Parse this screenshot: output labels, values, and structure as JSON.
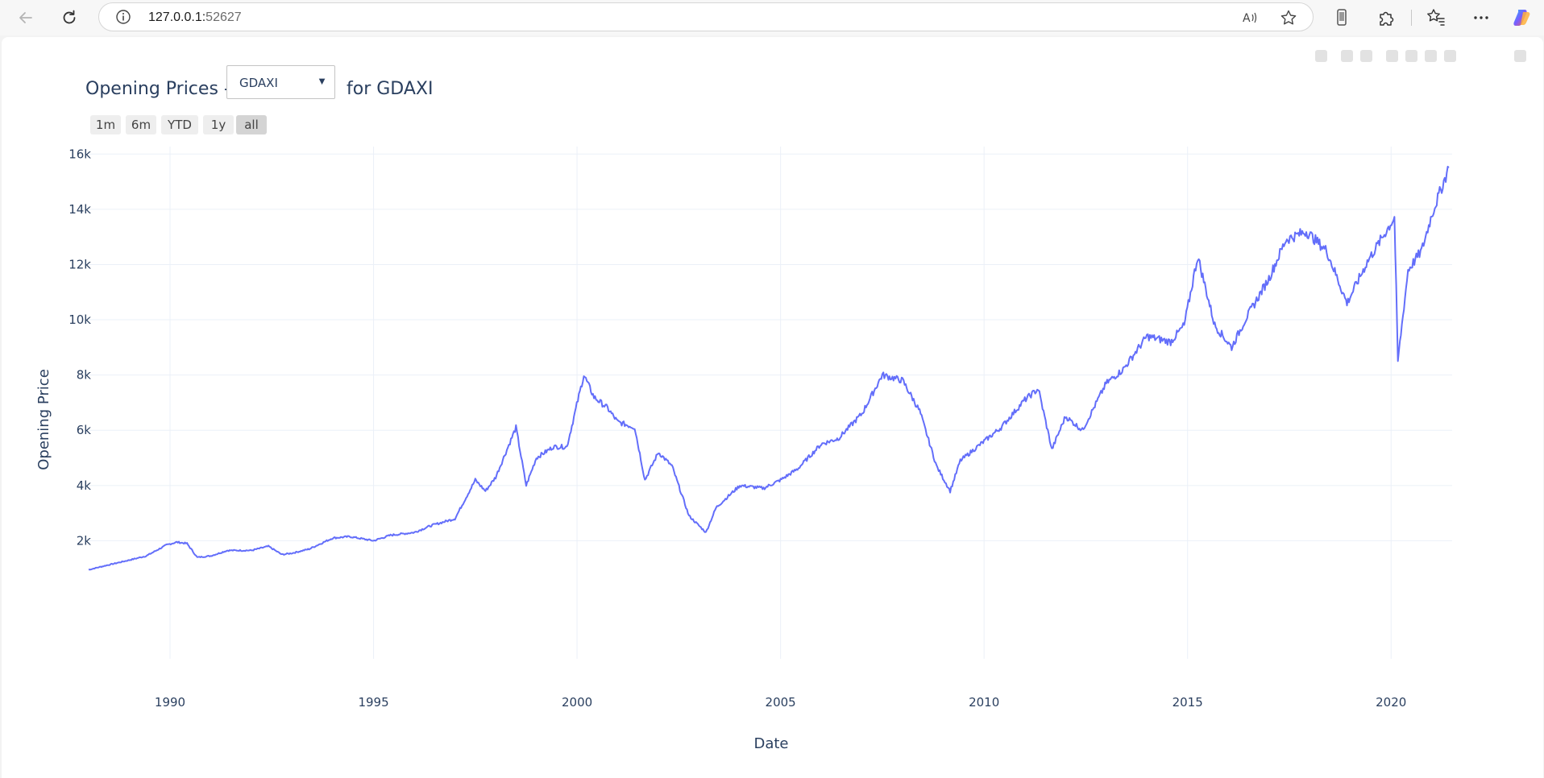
{
  "browser": {
    "url_host": "127.0.0.1:",
    "url_port": "52627"
  },
  "icons": {
    "back": "back-arrow-icon",
    "refresh": "refresh-icon",
    "info": "info-icon",
    "read_aloud": "read-aloud-icon",
    "favorite": "star-icon",
    "phone": "phone-icon",
    "extensions": "puzzle-icon",
    "favorites_bar": "favorites-icon",
    "more": "more-icon",
    "copilot": "copilot-icon"
  },
  "header": {
    "title_prefix": "Opening Prices -",
    "title_suffix": "for GDAXI",
    "symbol_select": {
      "value": "GDAXI"
    }
  },
  "range_selector": {
    "buttons": [
      {
        "label": "1m"
      },
      {
        "label": "6m"
      },
      {
        "label": "YTD"
      },
      {
        "label": "1y"
      },
      {
        "label": "all",
        "active": true
      }
    ]
  },
  "chart_data": {
    "type": "line",
    "title": "Opening Prices - GDAXI for GDAXI",
    "xlabel": "Date",
    "ylabel": "Opening Price",
    "x_ticks": [
      "1990",
      "1995",
      "2000",
      "2005",
      "2010",
      "2015",
      "2020"
    ],
    "y_ticks": [
      "2k",
      "4k",
      "6k",
      "8k",
      "10k",
      "12k",
      "14k",
      "16k"
    ],
    "xlim": [
      "1988-01",
      "2021-07"
    ],
    "ylim": [
      700,
      16300
    ],
    "grid": true,
    "color": "#636efa",
    "series": [
      {
        "name": "GDAXI",
        "x": [
          "1988-01",
          "1988-06",
          "1989-01",
          "1989-06",
          "1989-12",
          "1990-03",
          "1990-06",
          "1990-09",
          "1991-01",
          "1991-06",
          "1992-01",
          "1992-06",
          "1992-10",
          "1993-01",
          "1993-06",
          "1994-01",
          "1994-06",
          "1995-01",
          "1995-06",
          "1996-01",
          "1996-06",
          "1997-01",
          "1997-07",
          "1997-10",
          "1998-01",
          "1998-07",
          "1998-10",
          "1999-01",
          "1999-06",
          "1999-10",
          "2000-03",
          "2000-06",
          "2000-10",
          "2001-01",
          "2001-06",
          "2001-09",
          "2002-01",
          "2002-05",
          "2002-10",
          "2003-03",
          "2003-06",
          "2004-01",
          "2004-08",
          "2005-01",
          "2005-06",
          "2006-01",
          "2006-06",
          "2007-01",
          "2007-07",
          "2008-01",
          "2008-06",
          "2008-11",
          "2009-03",
          "2009-06",
          "2010-01",
          "2010-06",
          "2011-01",
          "2011-05",
          "2011-09",
          "2012-01",
          "2012-06",
          "2013-01",
          "2013-06",
          "2014-01",
          "2014-08",
          "2014-12",
          "2015-04",
          "2015-09",
          "2016-02",
          "2016-06",
          "2017-01",
          "2017-06",
          "2017-12",
          "2018-06",
          "2018-12",
          "2019-06",
          "2020-02",
          "2020-03",
          "2020-06",
          "2020-10",
          "2021-01",
          "2021-06"
        ],
        "values": [
          950,
          1100,
          1300,
          1450,
          1850,
          1950,
          1900,
          1400,
          1450,
          1650,
          1650,
          1800,
          1500,
          1550,
          1700,
          2100,
          2150,
          2000,
          2200,
          2300,
          2550,
          2800,
          4200,
          3800,
          4300,
          6100,
          4000,
          5000,
          5400,
          5400,
          8000,
          7200,
          6800,
          6300,
          6100,
          4200,
          5200,
          4700,
          2900,
          2300,
          3200,
          4000,
          3900,
          4200,
          4600,
          5500,
          5700,
          6600,
          8000,
          7800,
          6700,
          4700,
          3800,
          4900,
          5600,
          6100,
          7100,
          7500,
          5300,
          6500,
          6000,
          7700,
          8200,
          9400,
          9200,
          9800,
          12300,
          9800,
          9000,
          10000,
          11500,
          12900,
          13200,
          12500,
          10600,
          12100,
          13700,
          8500,
          11800,
          12500,
          13800,
          15500
        ]
      }
    ]
  }
}
